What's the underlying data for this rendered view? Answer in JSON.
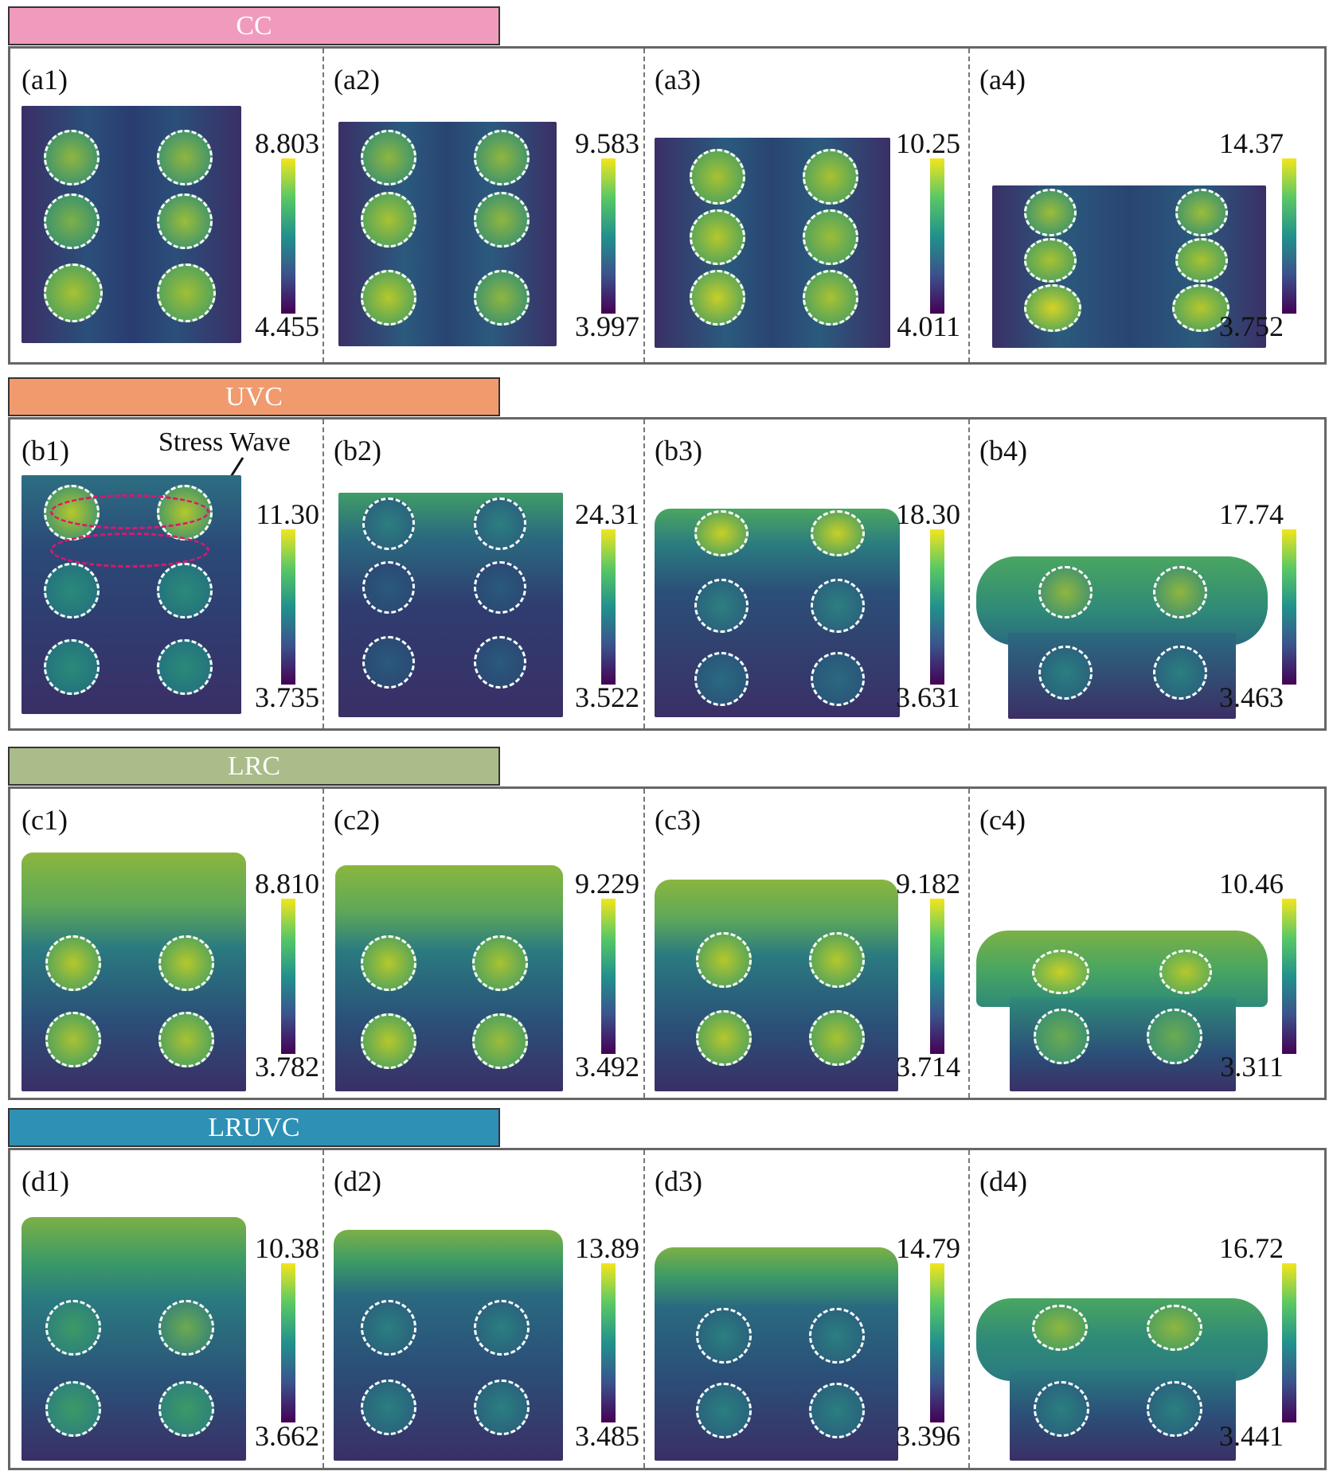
{
  "colors": {
    "cc": "#f09bbd",
    "uvc": "#f19a6e",
    "lrc": "#a9bc8a",
    "lruvc": "#2e90b5",
    "field_low": "#3a2a63",
    "field_mid": "#1f6f80",
    "field_high": "#b8c832"
  },
  "groups": [
    {
      "key": "cc",
      "title": "CC",
      "panels": [
        {
          "label": "(a1)",
          "max": "8.803",
          "min": "4.455"
        },
        {
          "label": "(a2)",
          "max": "9.583",
          "min": "3.997"
        },
        {
          "label": "(a3)",
          "max": "10.25",
          "min": "4.011"
        },
        {
          "label": "(a4)",
          "max": "14.37",
          "min": "3.752"
        }
      ]
    },
    {
      "key": "uvc",
      "title": "UVC",
      "annotation": "Stress Wave",
      "panels": [
        {
          "label": "(b1)",
          "max": "11.30",
          "min": "3.735"
        },
        {
          "label": "(b2)",
          "max": "24.31",
          "min": "3.522"
        },
        {
          "label": "(b3)",
          "max": "18.30",
          "min": "3.631"
        },
        {
          "label": "(b4)",
          "max": "17.74",
          "min": "3.463"
        }
      ]
    },
    {
      "key": "lrc",
      "title": "LRC",
      "panels": [
        {
          "label": "(c1)",
          "max": "8.810",
          "min": "3.782"
        },
        {
          "label": "(c2)",
          "max": "9.229",
          "min": "3.492"
        },
        {
          "label": "(c3)",
          "max": "9.182",
          "min": "3.714"
        },
        {
          "label": "(c4)",
          "max": "10.46",
          "min": "3.311"
        }
      ]
    },
    {
      "key": "lruvc",
      "title": "LRUVC",
      "panels": [
        {
          "label": "(d1)",
          "max": "10.38",
          "min": "3.662"
        },
        {
          "label": "(d2)",
          "max": "13.89",
          "min": "3.485"
        },
        {
          "label": "(d3)",
          "max": "14.79",
          "min": "3.396"
        },
        {
          "label": "(d4)",
          "max": "16.72",
          "min": "3.441"
        }
      ]
    }
  ]
}
